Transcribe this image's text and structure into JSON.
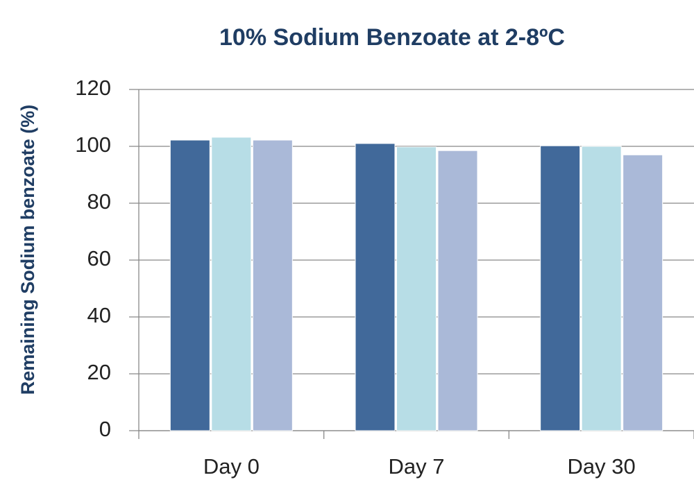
{
  "chart_data": {
    "type": "bar",
    "title": "10% Sodium Benzoate at 2-8ºC",
    "y_label": "Remaining Sodium benzoate (%)",
    "categories": [
      "Day 0",
      "Day 7",
      "Day 30"
    ],
    "series": [
      {
        "color": "#41699a",
        "values": [
          102.2,
          101,
          100.2
        ]
      },
      {
        "color": "#b7dde6",
        "values": [
          103.2,
          99.8,
          100
        ]
      },
      {
        "color": "#aab9d8",
        "values": [
          102.2,
          98.5,
          97
        ]
      }
    ],
    "ylim": [
      0,
      120
    ],
    "yticks": [
      0,
      20,
      40,
      60,
      80,
      100,
      120
    ],
    "grid": true
  }
}
